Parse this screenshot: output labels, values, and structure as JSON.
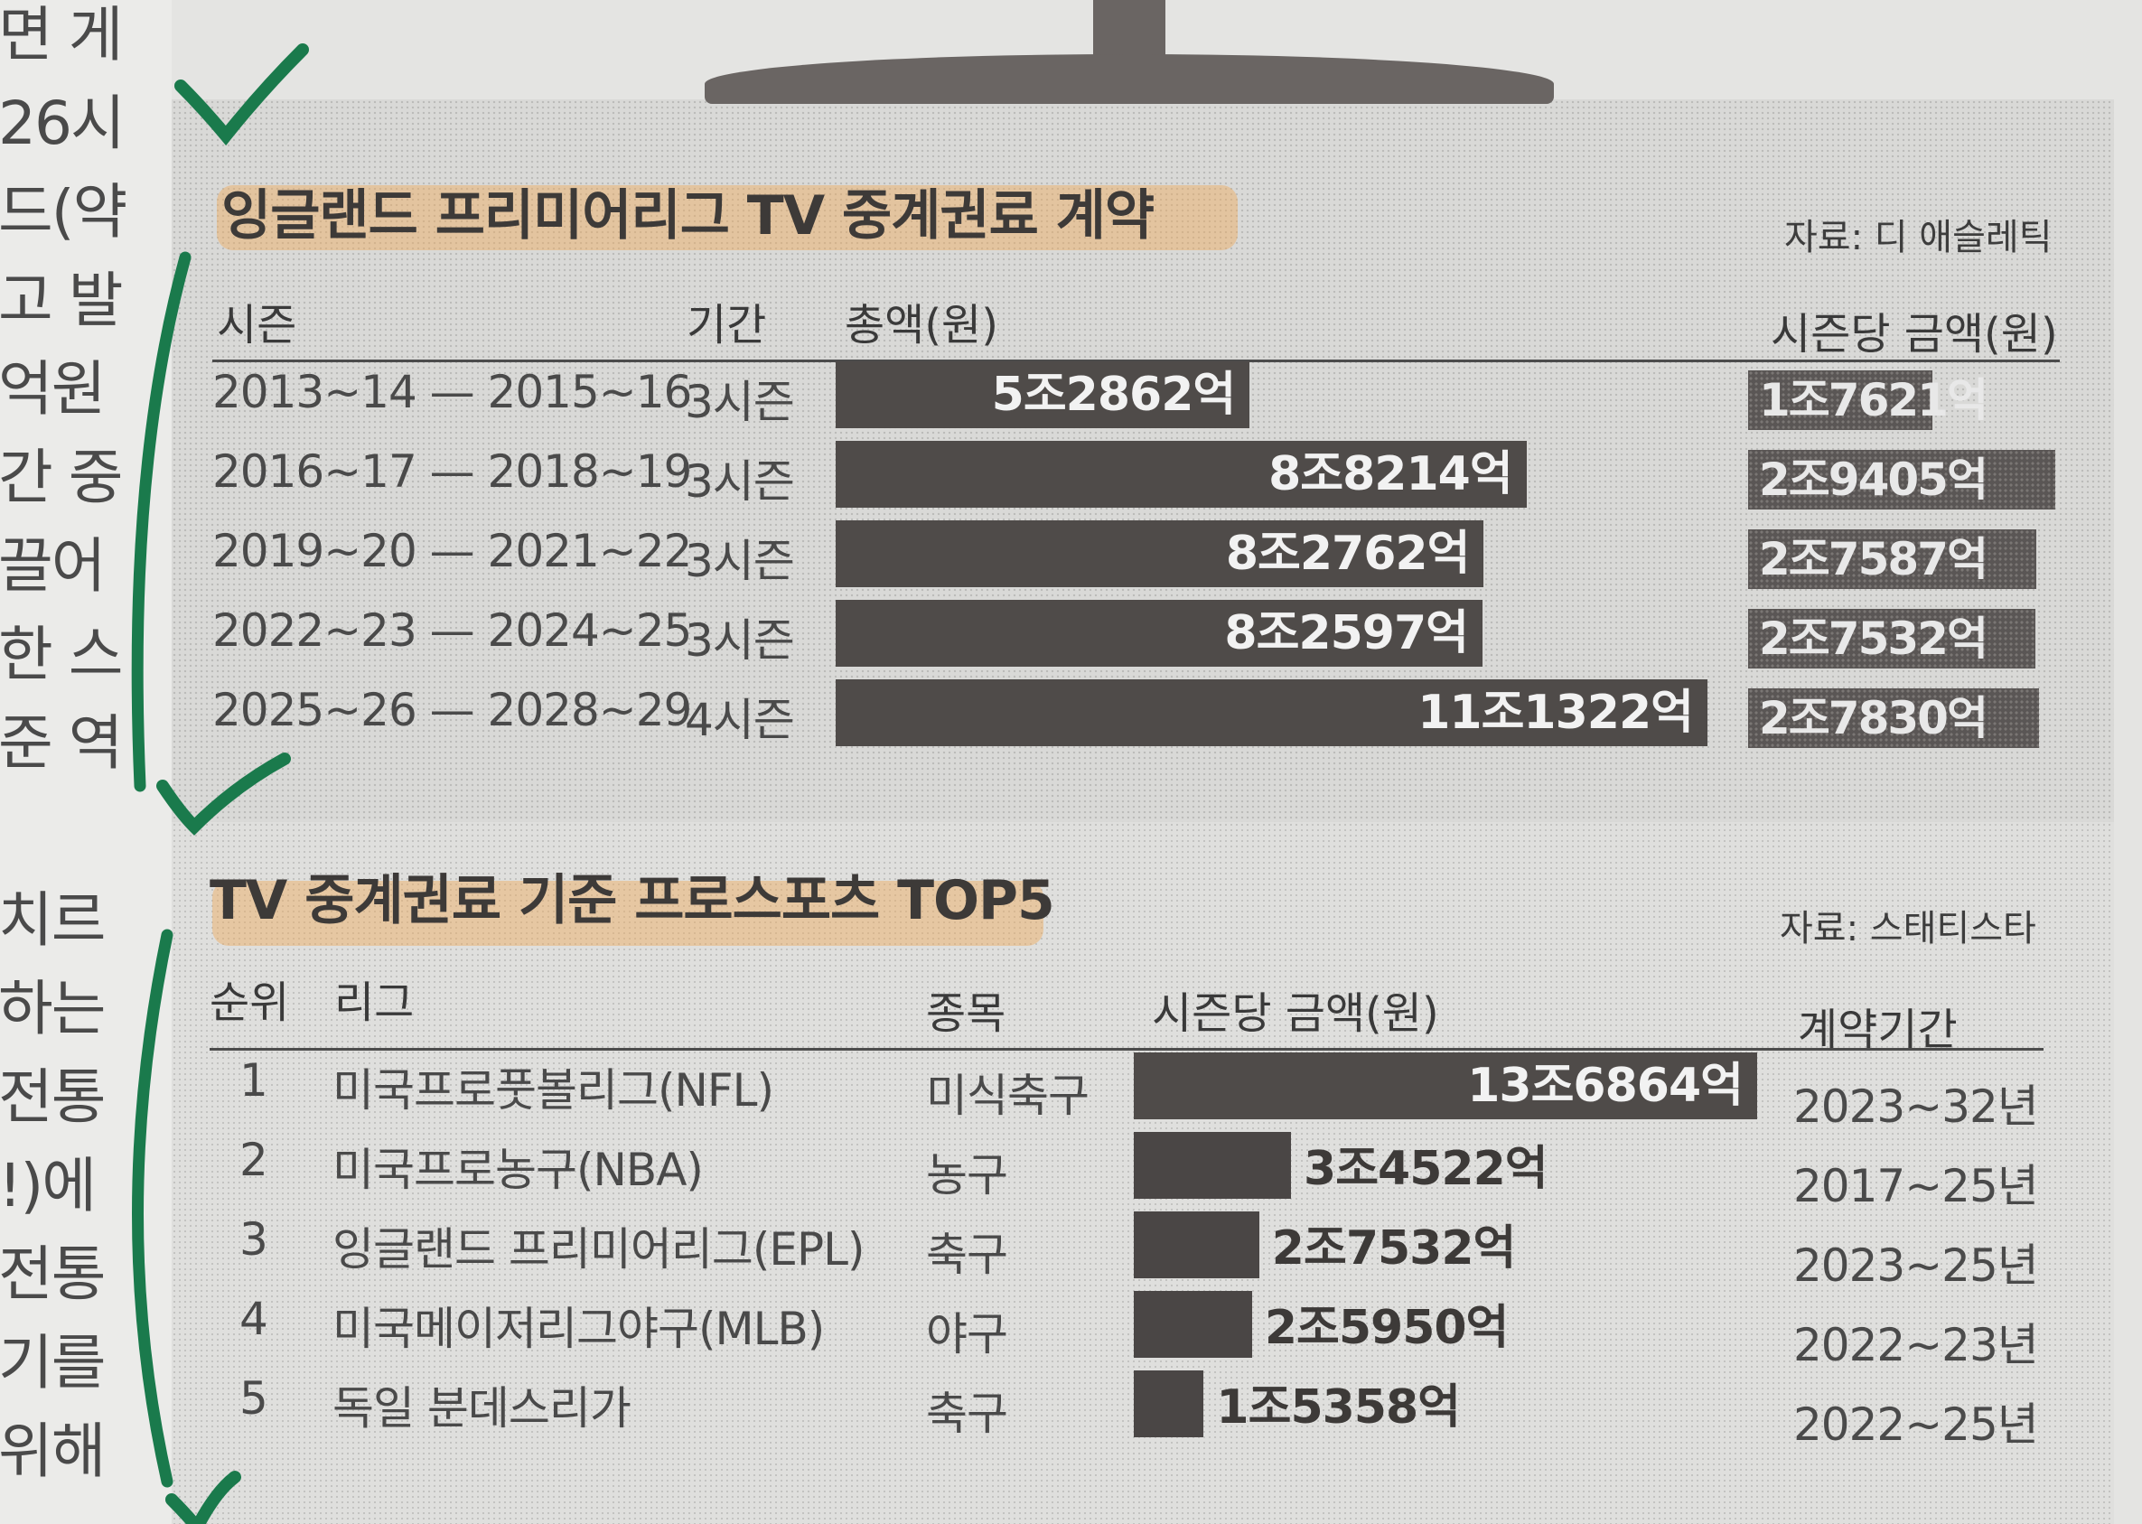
{
  "left_column_lines": [
    "면 게",
    "26시",
    "드(약",
    "고 발",
    "억원",
    "간 중",
    "끌어",
    "한 스",
    "준 역",
    "",
    "치르",
    "하는",
    "전통",
    "!)에",
    "전통",
    "기를",
    "위해"
  ],
  "epl": {
    "title": "잉글랜드 프리미어리그 TV 중계권료 계약",
    "source": "자료: 디 애슬레틱",
    "headers": {
      "season": "시즌",
      "period": "기간",
      "total": "총액(원)",
      "per_season": "시즌당 금액(원)"
    }
  },
  "top5": {
    "title": "TV 중계권료 기준 프로스포츠 TOP5",
    "source": "자료: 스태티스타",
    "headers": {
      "rank": "순위",
      "league": "리그",
      "sport": "종목",
      "per_season": "시즌당 금액(원)",
      "contract": "계약기간"
    }
  },
  "chart_data": [
    {
      "type": "bar",
      "title": "잉글랜드 프리미어리그 TV 중계권료 계약",
      "categories": [
        "2013~14 — 2015~16",
        "2016~17 — 2018~19",
        "2019~20 — 2021~22",
        "2022~23 — 2024~25",
        "2025~26 — 2028~29"
      ],
      "periods": [
        "3시즌",
        "3시즌",
        "3시즌",
        "3시즌",
        "4시즌"
      ],
      "values": [
        52862,
        88214,
        82762,
        82597,
        111322
      ],
      "value_unit": "억원",
      "value_labels": [
        "5조2862억",
        "8조8214억",
        "8조2762억",
        "8조2597억",
        "11조1322억"
      ],
      "per_season_values": [
        17621,
        29405,
        27587,
        27532,
        27830
      ],
      "per_season_labels": [
        "1조7621억",
        "2조9405억",
        "2조7587억",
        "2조7532억",
        "2조7830억"
      ],
      "colors": {
        "bar": "#4f4b49",
        "per_season": "#5a5655"
      }
    },
    {
      "type": "bar",
      "title": "TV 중계권료 기준 프로스포츠 TOP5",
      "ranks": [
        "1",
        "2",
        "3",
        "4",
        "5"
      ],
      "categories": [
        "미국프로풋볼리그(NFL)",
        "미국프로농구(NBA)",
        "잉글랜드 프리미어리그(EPL)",
        "미국메이저리그야구(MLB)",
        "독일 분데스리가"
      ],
      "sports": [
        "미식축구",
        "농구",
        "축구",
        "야구",
        "축구"
      ],
      "values": [
        136864,
        34522,
        27532,
        25950,
        15358
      ],
      "value_unit": "억원",
      "value_labels": [
        "13조6864억",
        "3조4522억",
        "2조7532억",
        "2조5950억",
        "1조5358억"
      ],
      "contracts": [
        "2023~32년",
        "2017~25년",
        "2023~25년",
        "2022~23년",
        "2022~25년"
      ],
      "colors": {
        "bar": "#4a4645"
      }
    }
  ]
}
